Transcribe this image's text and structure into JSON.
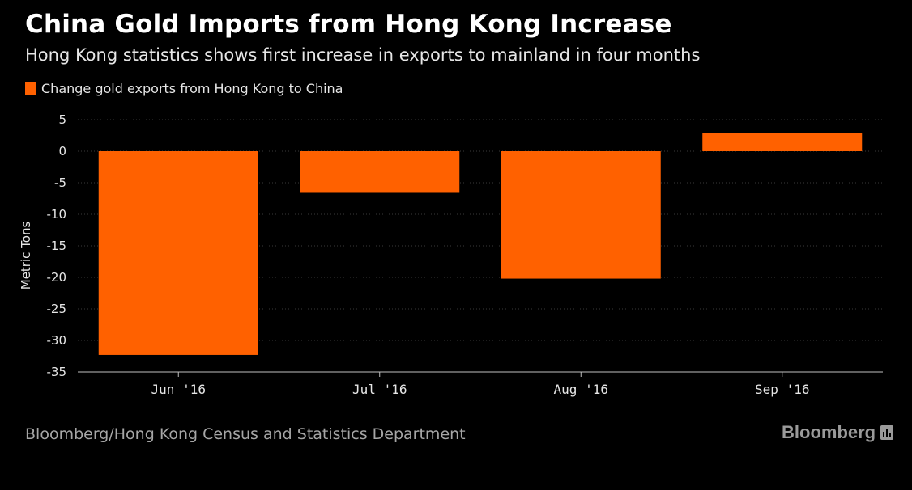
{
  "chart_data": {
    "type": "bar",
    "title": "China Gold Imports from Hong Kong Increase",
    "subtitle": "Hong Kong statistics shows first increase in exports to mainland in four months",
    "xlabel": "",
    "ylabel": "Metric Tons",
    "categories": [
      "Jun '16",
      "Jul '16",
      "Aug '16",
      "Sep '16"
    ],
    "series": [
      {
        "name": "Change gold exports from Hong Kong to China",
        "values": [
          -32.3,
          -6.6,
          -20.2,
          2.9
        ],
        "color": "#ff6100"
      }
    ],
    "ylim": [
      -35,
      5
    ],
    "yticks": [
      5,
      0,
      -5,
      -10,
      -15,
      -20,
      -25,
      -30,
      -35
    ],
    "grid": true,
    "legend": "top-left"
  },
  "source": "Bloomberg/Hong Kong Census and Statistics Department",
  "brand": {
    "name": "Bloomberg",
    "icon": "bloomberg-bar-icon"
  },
  "colors": {
    "background": "#000000",
    "bar": "#ff6100",
    "grid": "#3a3a3a",
    "axis": "#bfbfbf",
    "text": "#e6e6e6",
    "muted": "#a6a6a6"
  }
}
